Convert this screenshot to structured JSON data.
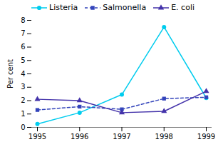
{
  "chart_data": {
    "type": "line",
    "ylabel": "Per cent",
    "x": [
      1995,
      1996,
      1997,
      1998,
      1999
    ],
    "series": [
      {
        "name": "Listeria",
        "color": "#00ccee",
        "marker": "circle",
        "line_style": "solid",
        "values": [
          0.25,
          1.1,
          2.45,
          7.5,
          2.2
        ]
      },
      {
        "name": "Salmonella",
        "color": "#3344bb",
        "marker": "square",
        "line_style": "dashed",
        "values": [
          1.3,
          1.55,
          1.35,
          2.15,
          2.25
        ]
      },
      {
        "name": "E. coli",
        "color": "#4433aa",
        "marker": "triangle",
        "line_style": "solid",
        "values": [
          2.1,
          2.0,
          1.1,
          1.2,
          2.7
        ]
      }
    ],
    "xlim": [
      1995,
      1999
    ],
    "xticks": [
      1995,
      1996,
      1997,
      1998,
      1999
    ],
    "ylim": [
      0,
      8
    ],
    "yticks": [
      0,
      1,
      2,
      3,
      4,
      5,
      6,
      7,
      8
    ],
    "grid": false,
    "legend": "upper left"
  }
}
